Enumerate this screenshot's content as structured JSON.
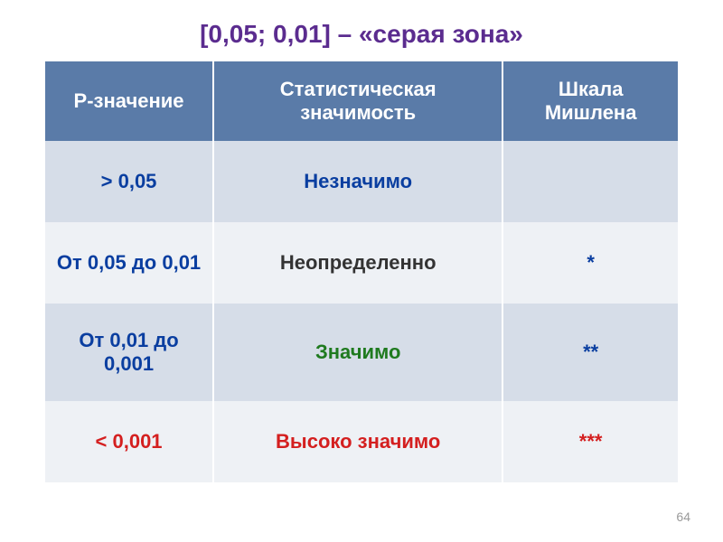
{
  "title": "[0,05; 0,01] – «серая зона»",
  "title_color": "#5b2c8f",
  "table": {
    "header_bg": "#5a7ba8",
    "row_odd_bg": "#d6dde8",
    "row_even_bg": "#eef1f5",
    "columns": [
      {
        "label": "P-значение"
      },
      {
        "label": "Статистическая значимость"
      },
      {
        "label": "Шкала Мишлена"
      }
    ],
    "rows": [
      {
        "pvalue": "> 0,05",
        "pvalue_color": "#0a3ea0",
        "sig": "Незначимо",
        "sig_color": "#0a3ea0",
        "michlen": "",
        "michlen_color": "#0a3ea0"
      },
      {
        "pvalue": "От 0,05 до 0,01",
        "pvalue_color": "#0a3ea0",
        "sig": "Неопределенно",
        "sig_color": "#333333",
        "michlen": "*",
        "michlen_color": "#0a3ea0"
      },
      {
        "pvalue": "От 0,01 до 0,001",
        "pvalue_color": "#0a3ea0",
        "sig": "Значимо",
        "sig_color": "#1f7a1f",
        "michlen": "**",
        "michlen_color": "#0a3ea0"
      },
      {
        "pvalue": "< 0,001",
        "pvalue_color": "#d41f1f",
        "sig": "Высоко значимо",
        "sig_color": "#d41f1f",
        "michlen": "***",
        "michlen_color": "#d41f1f"
      }
    ]
  },
  "page_number": "64"
}
